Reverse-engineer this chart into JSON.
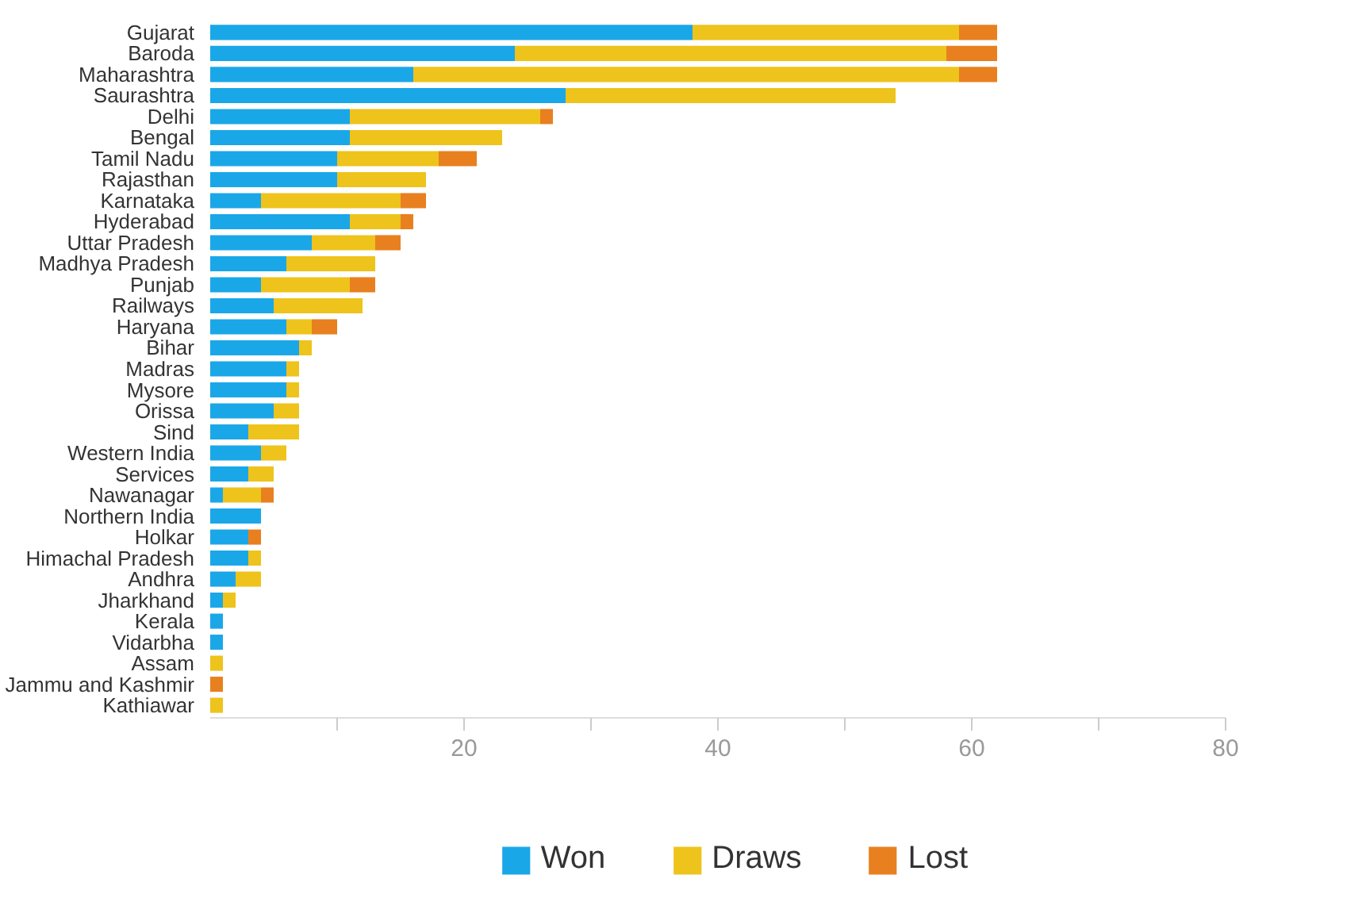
{
  "chart_data": {
    "type": "bar",
    "orientation": "horizontal",
    "stacked": true,
    "categories": [
      "Gujarat",
      "Baroda",
      "Maharashtra",
      "Saurashtra",
      "Delhi",
      "Bengal",
      "Tamil Nadu",
      "Rajasthan",
      "Karnataka",
      "Hyderabad",
      "Uttar Pradesh",
      "Madhya Pradesh",
      "Punjab",
      "Railways",
      "Haryana",
      "Bihar",
      "Madras",
      "Mysore",
      "Orissa",
      "Sind",
      "Western India",
      "Services",
      "Nawanagar",
      "Northern India",
      "Holkar",
      "Himachal Pradesh",
      "Andhra",
      "Jharkhand",
      "Kerala",
      "Vidarbha",
      "Assam",
      "Jammu and Kashmir",
      "Kathiawar"
    ],
    "series": [
      {
        "name": "Won",
        "color": "#1aa7e8",
        "values": [
          38,
          24,
          16,
          28,
          11,
          11,
          10,
          10,
          4,
          11,
          8,
          6,
          4,
          5,
          6,
          7,
          6,
          6,
          5,
          3,
          4,
          3,
          1,
          4,
          3,
          3,
          2,
          1,
          1,
          1,
          0,
          0,
          0
        ]
      },
      {
        "name": "Draws",
        "color": "#eec31b",
        "values": [
          21,
          34,
          43,
          26,
          15,
          12,
          8,
          7,
          11,
          4,
          5,
          7,
          7,
          7,
          2,
          1,
          1,
          1,
          2,
          4,
          2,
          2,
          3,
          0,
          0,
          1,
          2,
          1,
          0,
          0,
          1,
          0,
          1
        ]
      },
      {
        "name": "Lost",
        "color": "#e8801f",
        "values": [
          3,
          4,
          3,
          0,
          1,
          0,
          3,
          0,
          2,
          1,
          2,
          0,
          2,
          0,
          2,
          0,
          0,
          0,
          0,
          0,
          0,
          0,
          1,
          0,
          1,
          0,
          0,
          0,
          0,
          0,
          0,
          1,
          0
        ]
      }
    ],
    "xlim": [
      0,
      80
    ],
    "xticks": [
      {
        "value": 10,
        "label": null
      },
      20,
      {
        "value": 30,
        "label": null
      },
      40,
      {
        "value": 50,
        "label": null
      },
      60,
      {
        "value": 70,
        "label": null
      },
      80
    ],
    "grid": false,
    "legend": "bottom"
  }
}
